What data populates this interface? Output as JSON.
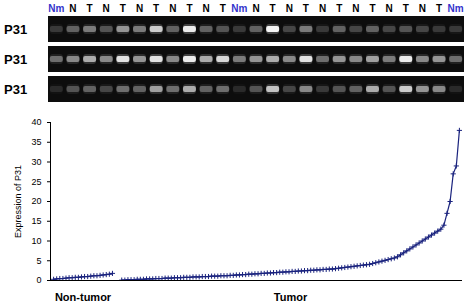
{
  "gel": {
    "lanes": [
      "Nm",
      "N",
      "T",
      "N",
      "T",
      "N",
      "T",
      "N",
      "T",
      "N",
      "T",
      "Nm",
      "N",
      "T",
      "N",
      "T",
      "N",
      "T",
      "N",
      "T",
      "N",
      "T",
      "N",
      "T",
      "Nm"
    ],
    "lane_colors": [
      "#3333cc",
      "#000000",
      "#000000",
      "#000000",
      "#000000",
      "#000000",
      "#000000",
      "#000000",
      "#000000",
      "#000000",
      "#000000",
      "#3333cc",
      "#000000",
      "#000000",
      "#000000",
      "#000000",
      "#000000",
      "#000000",
      "#000000",
      "#000000",
      "#000000",
      "#000000",
      "#000000",
      "#000000",
      "#3333cc"
    ],
    "rows": [
      {
        "label": "P31",
        "intensity": [
          0.15,
          0.3,
          0.4,
          0.25,
          0.5,
          0.4,
          0.75,
          0.3,
          0.9,
          0.3,
          0.25,
          0.15,
          0.3,
          0.95,
          0.2,
          0.4,
          0.15,
          0.3,
          0.2,
          0.3,
          0.2,
          0.25,
          0.2,
          0.15,
          0.15
        ]
      },
      {
        "label": "P31",
        "intensity": [
          0.35,
          0.45,
          0.6,
          0.45,
          0.85,
          0.5,
          0.85,
          0.45,
          0.9,
          0.6,
          0.8,
          0.4,
          0.5,
          0.6,
          0.45,
          0.85,
          0.35,
          0.5,
          0.45,
          0.55,
          0.4,
          0.9,
          0.45,
          0.5,
          0.35
        ]
      },
      {
        "label": "P31",
        "intensity": [
          0.1,
          0.25,
          0.3,
          0.2,
          0.35,
          0.3,
          0.55,
          0.35,
          0.6,
          0.3,
          0.35,
          0.1,
          0.25,
          0.7,
          0.2,
          0.45,
          0.15,
          0.25,
          0.3,
          0.6,
          0.25,
          0.75,
          0.5,
          0.45,
          0.1
        ]
      }
    ]
  },
  "chart_data": {
    "type": "line",
    "y_label": "Expression of P31",
    "ylim": [
      0,
      40
    ],
    "yticks": [
      0,
      5,
      10,
      15,
      20,
      25,
      30,
      35,
      40
    ],
    "xlim": [
      0,
      133
    ],
    "tick_labels": "y",
    "color": "#1a237e",
    "marker": "plus",
    "line_style": "solid",
    "groups": [
      {
        "label": "Non-tumor",
        "start": 1,
        "end": 20
      },
      {
        "label": "Tumor",
        "start": 23,
        "end": 132
      }
    ],
    "x": [
      1,
      2,
      3,
      4,
      5,
      6,
      7,
      8,
      9,
      10,
      11,
      12,
      13,
      14,
      15,
      16,
      17,
      18,
      19,
      20,
      21,
      22,
      23,
      24,
      25,
      26,
      27,
      28,
      29,
      30,
      31,
      32,
      33,
      34,
      35,
      36,
      37,
      38,
      39,
      40,
      41,
      42,
      43,
      44,
      45,
      46,
      47,
      48,
      49,
      50,
      51,
      52,
      53,
      54,
      55,
      56,
      57,
      58,
      59,
      60,
      61,
      62,
      63,
      64,
      65,
      66,
      67,
      68,
      69,
      70,
      71,
      72,
      73,
      74,
      75,
      76,
      77,
      78,
      79,
      80,
      81,
      82,
      83,
      84,
      85,
      86,
      87,
      88,
      89,
      90,
      91,
      92,
      93,
      94,
      95,
      96,
      97,
      98,
      99,
      100,
      101,
      102,
      103,
      104,
      105,
      106,
      107,
      108,
      109,
      110,
      111,
      112,
      113,
      114,
      115,
      116,
      117,
      118,
      119,
      120,
      121,
      122,
      123,
      124,
      125,
      126,
      127,
      128,
      129,
      130,
      131,
      132
    ],
    "values": [
      0.3,
      0.4,
      0.5,
      0.5,
      0.6,
      0.7,
      0.7,
      0.8,
      0.8,
      0.9,
      1.0,
      1.0,
      1.1,
      1.2,
      1.2,
      1.3,
      1.4,
      1.5,
      1.6,
      1.8,
      null,
      null,
      0.1,
      0.1,
      0.2,
      0.2,
      0.2,
      0.3,
      0.3,
      0.3,
      0.4,
      0.4,
      0.4,
      0.5,
      0.5,
      0.5,
      0.6,
      0.6,
      0.6,
      0.7,
      0.7,
      0.7,
      0.8,
      0.8,
      0.8,
      0.9,
      0.9,
      0.9,
      1.0,
      1.0,
      1.0,
      1.1,
      1.1,
      1.1,
      1.2,
      1.2,
      1.2,
      1.3,
      1.3,
      1.4,
      1.4,
      1.5,
      1.5,
      1.6,
      1.6,
      1.7,
      1.7,
      1.8,
      1.8,
      1.9,
      1.9,
      2.0,
      2.0,
      2.1,
      2.1,
      2.2,
      2.2,
      2.3,
      2.3,
      2.4,
      2.4,
      2.5,
      2.5,
      2.6,
      2.6,
      2.7,
      2.7,
      2.8,
      2.8,
      2.9,
      2.9,
      3.0,
      3.1,
      3.2,
      3.3,
      3.4,
      3.5,
      3.6,
      3.7,
      3.8,
      3.9,
      4.0,
      4.1,
      4.3,
      4.5,
      4.7,
      4.9,
      5.1,
      5.3,
      5.5,
      5.7,
      6.0,
      6.5,
      7.0,
      7.5,
      8.0,
      8.5,
      9.0,
      9.5,
      10.0,
      10.5,
      11.0,
      11.5,
      12.0,
      12.5,
      13.0,
      14.0,
      17,
      20,
      27,
      29,
      38
    ]
  }
}
